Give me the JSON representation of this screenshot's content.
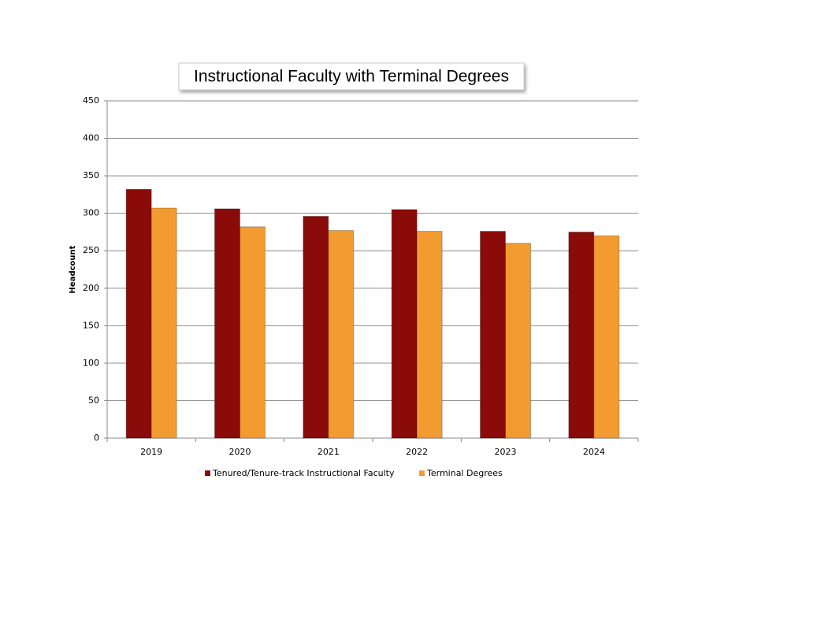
{
  "chart_data": {
    "type": "bar",
    "title": "Instructional Faculty with Terminal Degrees",
    "y_label": "Headcount",
    "categories": [
      "2019",
      "2020",
      "2021",
      "2022",
      "2023",
      "2024"
    ],
    "series": [
      {
        "name": "Tenured/Tenure-track Instructional Faculty",
        "color": "#8b0a0a",
        "values": [
          332,
          306,
          296,
          305,
          276,
          275
        ]
      },
      {
        "name": "Terminal Degrees",
        "color": "#f29b30",
        "values": [
          307,
          282,
          277,
          276,
          260,
          270
        ]
      }
    ],
    "ylim": [
      0,
      450
    ],
    "yticks": [
      0,
      50,
      100,
      150,
      200,
      250,
      300,
      350,
      400,
      450
    ],
    "grid": true,
    "legend": "bottom"
  }
}
